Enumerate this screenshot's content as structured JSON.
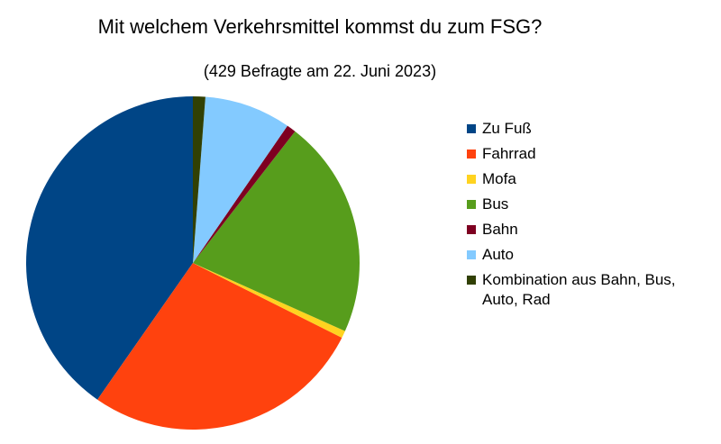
{
  "chart_data": {
    "type": "pie",
    "title": "Mit welchem Verkehrsmittel kommst du zum FSG?",
    "subtitle": "(429 Befragte am 22. Juni 2023)",
    "categories": [
      "Zu Fuß",
      "Fahrrad",
      "Mofa",
      "Bus",
      "Bahn",
      "Auto",
      "Kombination aus Bahn, Bus, Auto, Rad"
    ],
    "values": [
      40.3,
      27.3,
      0.7,
      21.2,
      0.9,
      8.4,
      1.2
    ],
    "colors": [
      "#004586",
      "#ff420e",
      "#ffd320",
      "#579d1c",
      "#7e0021",
      "#83caff",
      "#314004"
    ],
    "legend": "right"
  }
}
